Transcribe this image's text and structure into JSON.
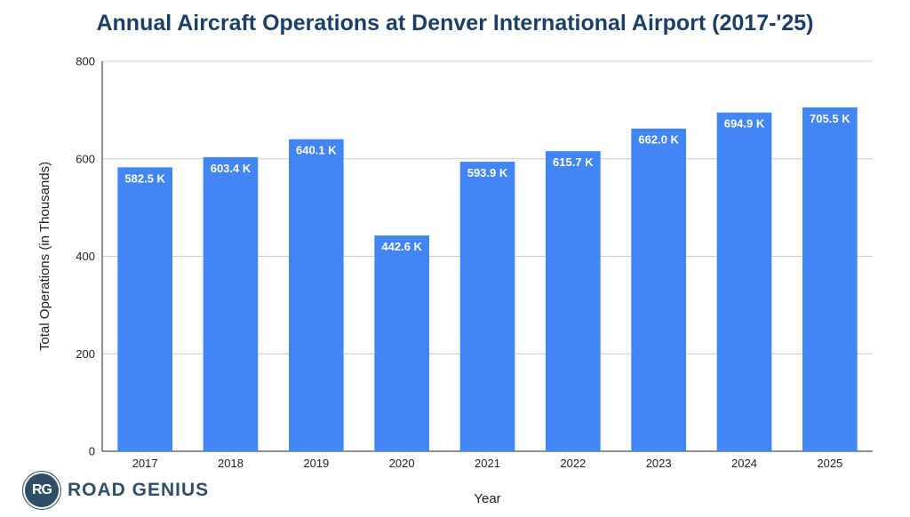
{
  "brand": {
    "mark": "RG",
    "name": "ROAD GENIUS"
  },
  "colors": {
    "title": "#1c3f66",
    "bar": "#4285f4",
    "grid": "#cccccc",
    "axis": "#222222",
    "label": "#ffffff"
  },
  "chart_data": {
    "type": "bar",
    "title": "Annual Aircraft Operations at Denver International Airport (2017-'25)",
    "xlabel": "Year",
    "ylabel": "Total Operations (in Thousands)",
    "ylim": [
      0,
      800
    ],
    "yticks": [
      "0",
      "200",
      "400",
      "600",
      "800"
    ],
    "grid": true,
    "categories": [
      "2017",
      "2018",
      "2019",
      "2020",
      "2021",
      "2022",
      "2023",
      "2024",
      "2025"
    ],
    "values": [
      582.5,
      603.4,
      640.1,
      442.6,
      593.9,
      615.7,
      662.0,
      694.9,
      705.5
    ],
    "data_labels": [
      "582.5 K",
      "603.4 K",
      "640.1 K",
      "442.6 K",
      "593.9 K",
      "615.7 K",
      "662.0 K",
      "694.9 K",
      "705.5 K"
    ]
  }
}
